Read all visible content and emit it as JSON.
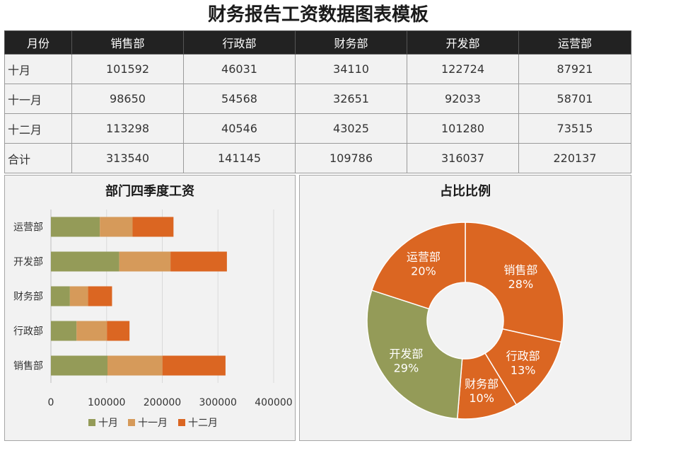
{
  "title": "财务报告工资数据图表模板",
  "table": {
    "headers": [
      "月份",
      "销售部",
      "行政部",
      "财务部",
      "开发部",
      "运营部"
    ],
    "rows": [
      [
        "十月",
        "101592",
        "46031",
        "34110",
        "122724",
        "87921"
      ],
      [
        "十一月",
        "98650",
        "54568",
        "32651",
        "92033",
        "58701"
      ],
      [
        "十二月",
        "113298",
        "40546",
        "43025",
        "101280",
        "73515"
      ],
      [
        "合计",
        "313540",
        "141145",
        "109786",
        "316037",
        "220137"
      ]
    ]
  },
  "colors": {
    "month1": "#949b58",
    "month2": "#d69a5a",
    "month3": "#db6622",
    "header_bg": "#222222"
  },
  "chart_data": [
    {
      "type": "bar",
      "orientation": "horizontal",
      "stacked": true,
      "title": "部门四季度工资",
      "categories": [
        "销售部",
        "行政部",
        "财务部",
        "开发部",
        "运营部"
      ],
      "series": [
        {
          "name": "十月",
          "values": [
            101592,
            46031,
            34110,
            122724,
            87921
          ]
        },
        {
          "name": "十一月",
          "values": [
            98650,
            54568,
            32651,
            92033,
            58701
          ]
        },
        {
          "name": "十二月",
          "values": [
            113298,
            40546,
            43025,
            101280,
            73515
          ]
        }
      ],
      "xlim": [
        0,
        400000
      ],
      "xticks": [
        "0",
        "100000",
        "200000",
        "300000",
        "400000"
      ],
      "grid": true,
      "legend": "bottom"
    },
    {
      "type": "pie",
      "donut": true,
      "title": "占比比例",
      "slices": [
        {
          "label": "销售部",
          "value": 313540,
          "percent_label": "28%"
        },
        {
          "label": "行政部",
          "value": 141145,
          "percent_label": "13%"
        },
        {
          "label": "财务部",
          "value": 109786,
          "percent_label": "10%"
        },
        {
          "label": "开发部",
          "value": 316037,
          "percent_label": "29%"
        },
        {
          "label": "运营部",
          "value": 220137,
          "percent_label": "20%"
        }
      ],
      "slice_colors": [
        "#db6622",
        "#db6622",
        "#db6622",
        "#949b58",
        "#db6622"
      ]
    }
  ]
}
